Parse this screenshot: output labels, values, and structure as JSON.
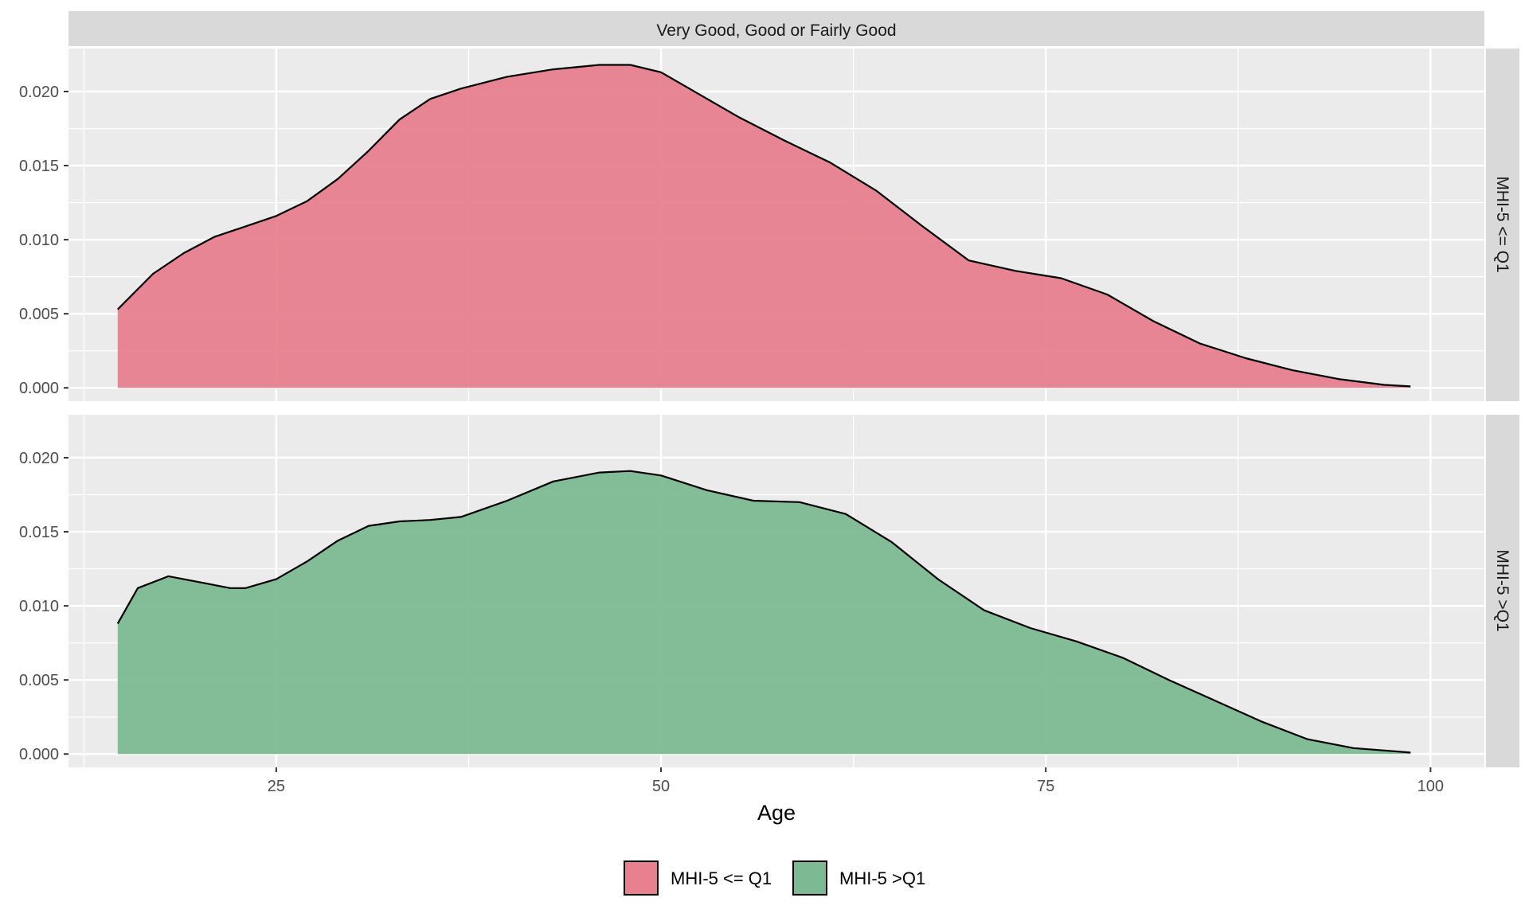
{
  "chart_data": {
    "type": "area",
    "subtype": "faceted-density",
    "facet_column_label": "Very Good, Good or Fairly Good",
    "xlabel": "Age",
    "ylabel": "",
    "xlim": [
      11.5,
      103.5
    ],
    "ylim": [
      -0.0009,
      0.0229
    ],
    "x_ticks": [
      25,
      50,
      75,
      100
    ],
    "y_ticks": [
      0.0,
      0.005,
      0.01,
      0.015,
      0.02
    ],
    "y_tick_labels": [
      "0.000",
      "0.005",
      "0.010",
      "0.015",
      "0.020"
    ],
    "grid": true,
    "legend_position": "bottom",
    "series": [
      {
        "name": "MHI-5 <= Q1",
        "facet_row_label": "MHI-5 <= Q1",
        "color": "#E8808F",
        "x": [
          14.7,
          17,
          19,
          21,
          23,
          25,
          27,
          29,
          31,
          33,
          35,
          37,
          40,
          43,
          46,
          48,
          50,
          52,
          55,
          58,
          61,
          64,
          67,
          70,
          73,
          76,
          79,
          82,
          85,
          88,
          91,
          94,
          97,
          98.7
        ],
        "y": [
          0.0053,
          0.0077,
          0.0091,
          0.0102,
          0.0109,
          0.0116,
          0.0126,
          0.0141,
          0.016,
          0.0181,
          0.0195,
          0.0202,
          0.021,
          0.0215,
          0.0218,
          0.0218,
          0.0213,
          0.0201,
          0.0183,
          0.0167,
          0.0152,
          0.0133,
          0.0109,
          0.0086,
          0.0079,
          0.0074,
          0.0063,
          0.0045,
          0.003,
          0.002,
          0.0012,
          0.0006,
          0.0002,
          0.0001
        ]
      },
      {
        "name": "MHI-5 >Q1",
        "facet_row_label": "MHI-5 >Q1",
        "color": "#7DBA94",
        "x": [
          14.7,
          16,
          18,
          20,
          22,
          23,
          25,
          27,
          29,
          31,
          33,
          35,
          37,
          40,
          43,
          46,
          48,
          50,
          53,
          56,
          59,
          62,
          65,
          68,
          71,
          74,
          77,
          80,
          83,
          86,
          89,
          92,
          95,
          98.7
        ],
        "y": [
          0.0088,
          0.0112,
          0.012,
          0.0116,
          0.0112,
          0.0112,
          0.0118,
          0.013,
          0.0144,
          0.0154,
          0.0157,
          0.0158,
          0.016,
          0.0171,
          0.0184,
          0.019,
          0.0191,
          0.0188,
          0.0178,
          0.0171,
          0.017,
          0.0162,
          0.0143,
          0.0118,
          0.0097,
          0.0085,
          0.0076,
          0.0065,
          0.005,
          0.0036,
          0.0022,
          0.001,
          0.0004,
          0.0001
        ]
      }
    ]
  }
}
